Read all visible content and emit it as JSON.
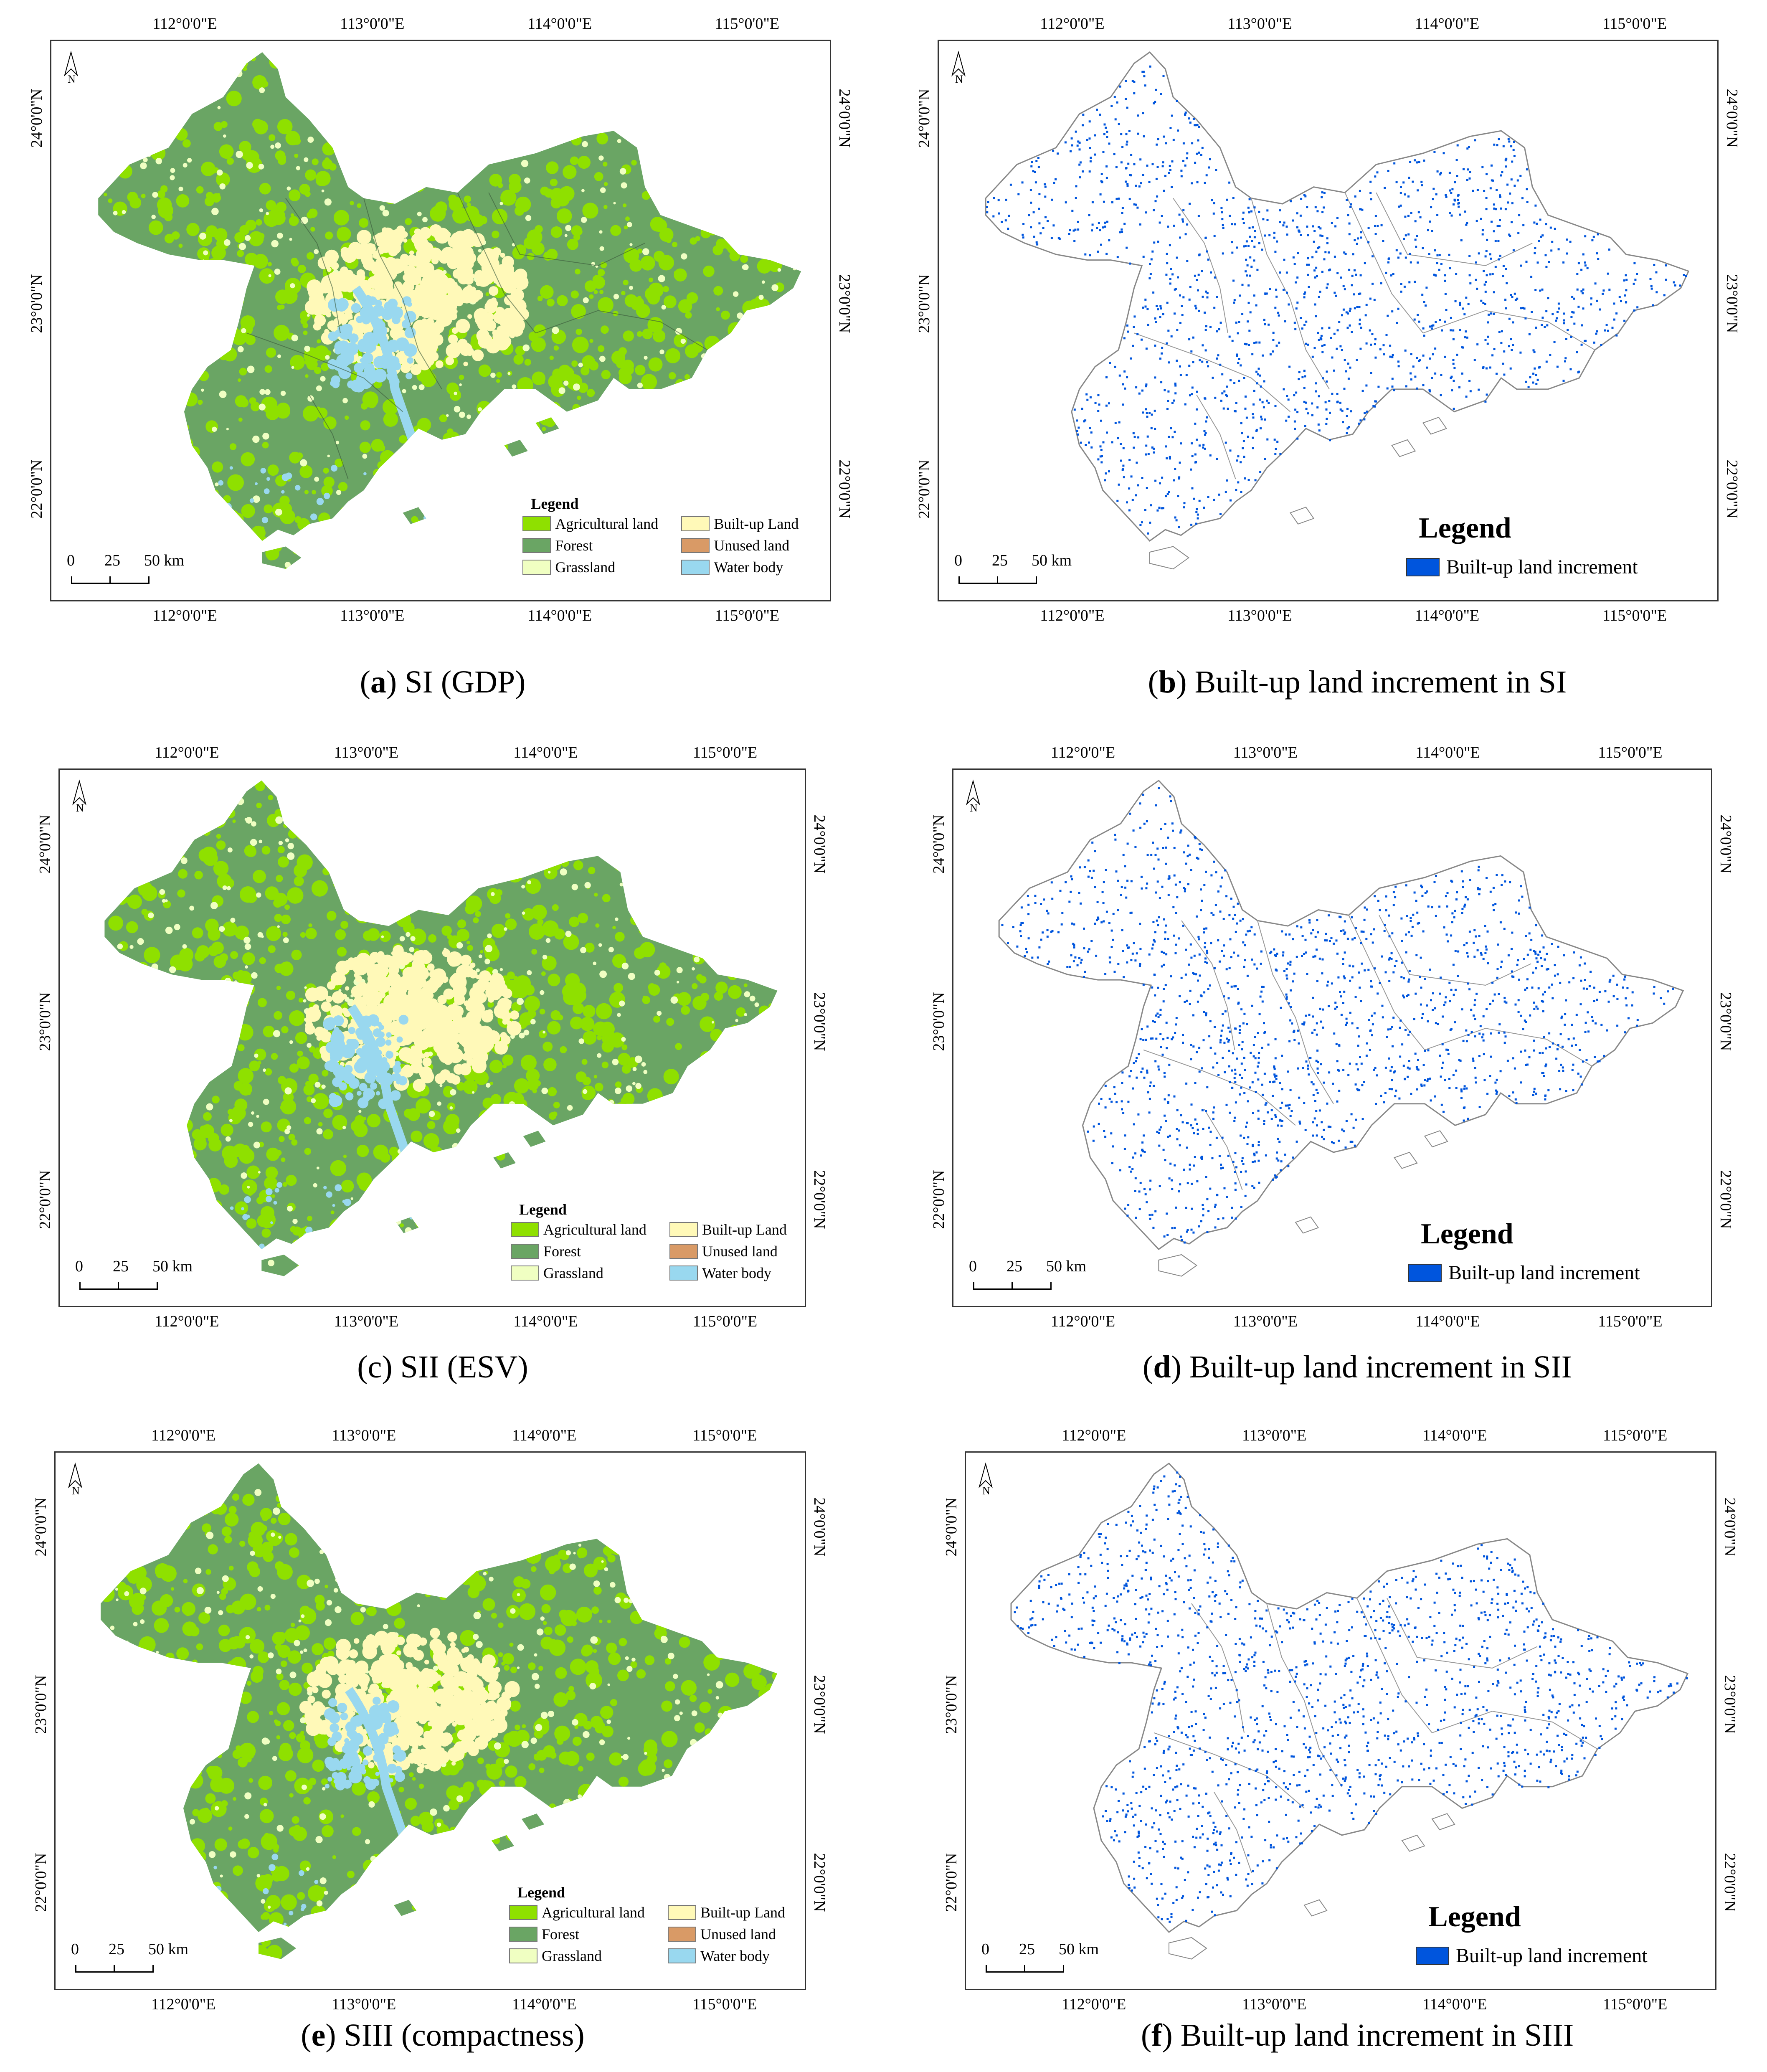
{
  "axes": {
    "lon_ticks": [
      "112°0'0\"E",
      "113°0'0\"E",
      "114°0'0\"E",
      "115°0'0\"E"
    ],
    "lat_ticks": [
      "24°0'0\"N",
      "23°0'0\"N",
      "22°0'0\"N"
    ]
  },
  "north_label": "N",
  "scale_labels": [
    "0",
    "25",
    "50 km"
  ],
  "land_legend": {
    "title": "Legend",
    "items": [
      {
        "label": "Agricultural land",
        "color": "#8fe000"
      },
      {
        "label": "Built-up Land",
        "color": "#fff9b8"
      },
      {
        "label": "Forest",
        "color": "#6aa564"
      },
      {
        "label": "Unused land",
        "color": "#d99a66"
      },
      {
        "label": "Grassland",
        "color": "#f0ffc2"
      },
      {
        "label": "Water body",
        "color": "#99d8ef"
      }
    ]
  },
  "increment_legend": {
    "title": "Legend",
    "item": {
      "label": "Built-up land increment",
      "color": "#0055dd"
    }
  },
  "captions": {
    "a": {
      "letter": "a",
      "paren_style": "bold",
      "text": " SI (GDP)"
    },
    "b": {
      "letter": "b",
      "paren_style": "bold",
      "text": " Built-up land increment in SI"
    },
    "c": {
      "letter": "c",
      "paren_style": "plain",
      "text": " SII (ESV)"
    },
    "d": {
      "letter": "d",
      "paren_style": "bold",
      "text": " Built-up land increment in SII"
    },
    "e": {
      "letter": "e",
      "paren_style": "bold",
      "text": " SIII (compactness)"
    },
    "f": {
      "letter": "f",
      "paren_style": "bold",
      "text": " Built-up land increment in SIII"
    }
  }
}
